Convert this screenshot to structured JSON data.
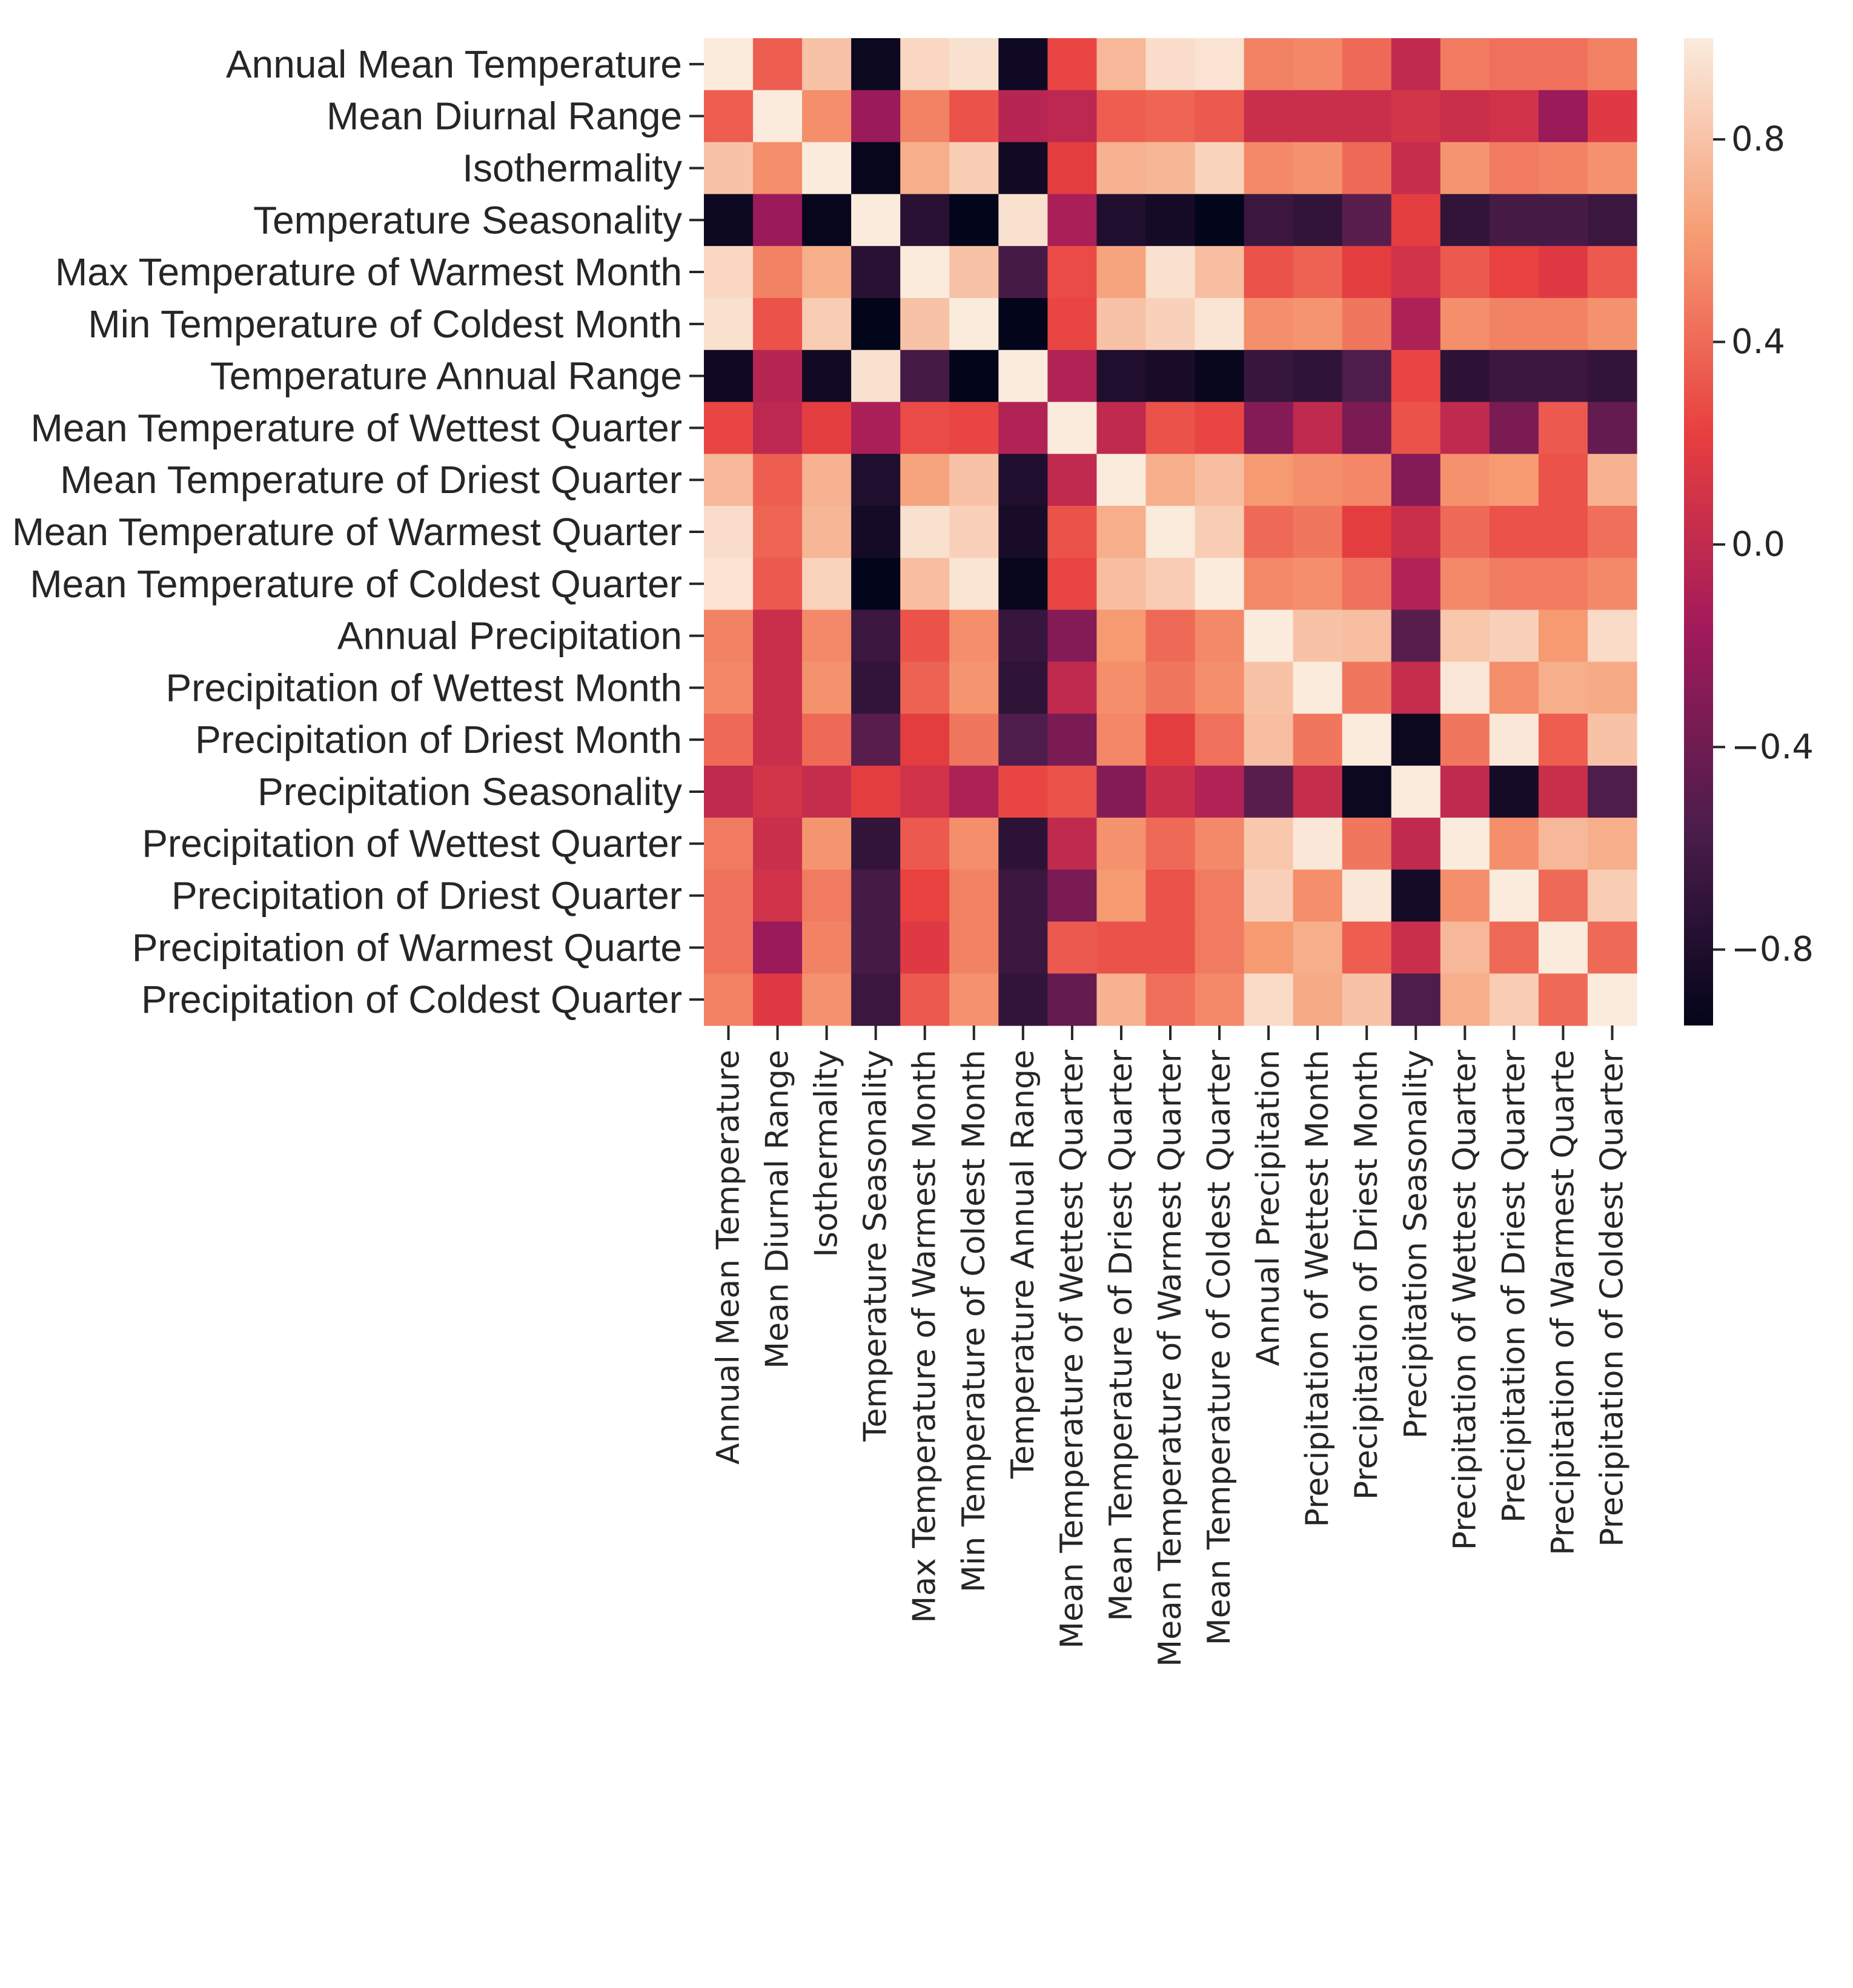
{
  "chart_data": {
    "type": "heatmap",
    "title": "",
    "xlabel": "",
    "ylabel": "",
    "labels_y": [
      "Annual Mean Temperature",
      "Mean Diurnal Range",
      "Isothermality",
      "Temperature Seasonality",
      "Max Temperature of Warmest Month",
      "Min Temperature of Coldest Month",
      "Temperature Annual Range",
      "Mean Temperature of Wettest Quarter",
      "Mean Temperature of Driest Quarter",
      "Mean Temperature of Warmest Quarter",
      "Mean Temperature of Coldest Quarter",
      "Annual Precipitation",
      "Precipitation of Wettest Month",
      "Precipitation of Driest Month",
      "Precipitation Seasonality",
      "Precipitation of Wettest Quarter",
      "Precipitation of Driest Quarter",
      "Precipitation of Warmest Quarte",
      "Precipitation of Coldest Quarter"
    ],
    "labels_x": [
      "Annual Mean Temperature",
      "Mean Diurnal Range",
      "Isothermality",
      "Temperature Seasonality",
      "Max Temperature of Warmest Month",
      "Min Temperature of Coldest Month",
      "Temperature Annual Range",
      "Mean Temperature of Wettest Quarter",
      "Mean Temperature of Driest Quarter",
      "Mean Temperature of Warmest Quarter",
      "Mean Temperature of Coldest Quarter",
      "Annual Precipitation",
      "Precipitation of Wettest Month",
      "Precipitation of Driest Month",
      "Precipitation Seasonality",
      "Precipitation of Wettest Quarter",
      "Precipitation of Driest Quarter",
      "Precipitation of Warmest Quarte",
      "Precipitation of Coldest Quarter"
    ],
    "values": [
      [
        1.0,
        0.35,
        0.8,
        -0.9,
        0.9,
        0.95,
        -0.88,
        0.25,
        0.75,
        0.93,
        0.96,
        0.5,
        0.52,
        0.4,
        0.0,
        0.47,
        0.43,
        0.43,
        0.5
      ],
      [
        0.35,
        1.0,
        0.55,
        -0.2,
        0.5,
        0.3,
        -0.05,
        -0.02,
        0.35,
        0.38,
        0.33,
        0.05,
        0.05,
        0.05,
        0.1,
        0.05,
        0.08,
        -0.2,
        0.17
      ],
      [
        0.8,
        0.55,
        1.0,
        -0.93,
        0.7,
        0.85,
        -0.87,
        0.2,
        0.72,
        0.74,
        0.88,
        0.53,
        0.57,
        0.4,
        0.03,
        0.58,
        0.47,
        0.5,
        0.57
      ],
      [
        -0.9,
        -0.2,
        -0.93,
        1.0,
        -0.75,
        -0.95,
        0.95,
        -0.12,
        -0.8,
        -0.85,
        -0.95,
        -0.65,
        -0.7,
        -0.5,
        0.2,
        -0.7,
        -0.6,
        -0.6,
        -0.65
      ],
      [
        0.9,
        0.5,
        0.7,
        -0.75,
        1.0,
        0.8,
        -0.6,
        0.27,
        0.65,
        0.95,
        0.78,
        0.3,
        0.37,
        0.2,
        0.08,
        0.33,
        0.23,
        0.17,
        0.33
      ],
      [
        0.95,
        0.3,
        0.85,
        -0.95,
        0.8,
        1.0,
        -0.95,
        0.25,
        0.8,
        0.87,
        0.97,
        0.55,
        0.58,
        0.45,
        -0.1,
        0.55,
        0.5,
        0.5,
        0.57
      ],
      [
        -0.88,
        -0.05,
        -0.87,
        0.95,
        -0.6,
        -0.95,
        1.0,
        -0.08,
        -0.8,
        -0.83,
        -0.92,
        -0.68,
        -0.72,
        -0.55,
        0.25,
        -0.73,
        -0.65,
        -0.65,
        -0.7
      ],
      [
        0.25,
        -0.02,
        0.2,
        -0.12,
        0.27,
        0.25,
        -0.08,
        1.0,
        0.0,
        0.3,
        0.25,
        -0.3,
        0.0,
        -0.35,
        0.3,
        0.0,
        -0.35,
        0.33,
        -0.45
      ],
      [
        0.75,
        0.35,
        0.72,
        -0.8,
        0.65,
        0.8,
        -0.8,
        0.0,
        1.0,
        0.7,
        0.78,
        0.6,
        0.55,
        0.52,
        -0.3,
        0.57,
        0.6,
        0.3,
        0.72
      ],
      [
        0.93,
        0.38,
        0.74,
        -0.85,
        0.95,
        0.87,
        -0.83,
        0.3,
        0.7,
        1.0,
        0.85,
        0.4,
        0.45,
        0.2,
        0.05,
        0.4,
        0.3,
        0.3,
        0.42
      ],
      [
        0.96,
        0.33,
        0.88,
        -0.95,
        0.78,
        0.97,
        -0.92,
        0.25,
        0.78,
        0.85,
        1.0,
        0.53,
        0.55,
        0.43,
        -0.08,
        0.53,
        0.47,
        0.47,
        0.53
      ],
      [
        0.5,
        0.05,
        0.53,
        -0.65,
        0.3,
        0.55,
        -0.68,
        -0.3,
        0.6,
        0.4,
        0.53,
        1.0,
        0.8,
        0.78,
        -0.5,
        0.82,
        0.87,
        0.6,
        0.92
      ],
      [
        0.52,
        0.05,
        0.57,
        -0.7,
        0.37,
        0.58,
        -0.72,
        0.0,
        0.55,
        0.45,
        0.55,
        0.8,
        1.0,
        0.45,
        0.03,
        0.98,
        0.55,
        0.7,
        0.68
      ],
      [
        0.4,
        0.05,
        0.4,
        -0.5,
        0.2,
        0.45,
        -0.55,
        -0.35,
        0.52,
        0.2,
        0.43,
        0.78,
        0.45,
        1.0,
        -0.9,
        0.45,
        0.98,
        0.35,
        0.8
      ],
      [
        0.0,
        0.1,
        0.03,
        0.2,
        0.08,
        -0.1,
        0.25,
        0.3,
        -0.3,
        0.05,
        -0.08,
        -0.5,
        0.03,
        -0.9,
        1.0,
        0.0,
        -0.85,
        0.05,
        -0.55
      ],
      [
        0.47,
        0.05,
        0.58,
        -0.7,
        0.33,
        0.55,
        -0.73,
        0.0,
        0.57,
        0.4,
        0.53,
        0.82,
        0.98,
        0.45,
        0.0,
        1.0,
        0.55,
        0.75,
        0.7
      ],
      [
        0.43,
        0.08,
        0.47,
        -0.6,
        0.23,
        0.5,
        -0.65,
        -0.35,
        0.6,
        0.3,
        0.47,
        0.87,
        0.55,
        0.98,
        -0.85,
        0.55,
        1.0,
        0.4,
        0.85
      ],
      [
        0.43,
        -0.2,
        0.5,
        -0.6,
        0.17,
        0.5,
        -0.65,
        0.33,
        0.3,
        0.3,
        0.47,
        0.6,
        0.7,
        0.35,
        0.05,
        0.75,
        0.4,
        1.0,
        0.4
      ],
      [
        0.5,
        0.17,
        0.57,
        -0.65,
        0.33,
        0.57,
        -0.7,
        -0.45,
        0.72,
        0.42,
        0.53,
        0.92,
        0.68,
        0.8,
        -0.55,
        0.7,
        0.85,
        0.4,
        1.0
      ]
    ],
    "vmin": -0.95,
    "vmax": 1.0,
    "colormap": "rocket",
    "colorbar_ticks": [
      {
        "value": 0.8,
        "label": "0.8"
      },
      {
        "value": 0.4,
        "label": "0.4"
      },
      {
        "value": 0.0,
        "label": "0.0"
      },
      {
        "value": -0.4,
        "label": "−0.4"
      },
      {
        "value": -0.8,
        "label": "−0.8"
      }
    ],
    "colormap_stops": [
      "#03051a",
      "#4c1d4b",
      "#a11a5b",
      "#e83f3f",
      "#f69c73",
      "#faebdd"
    ]
  }
}
